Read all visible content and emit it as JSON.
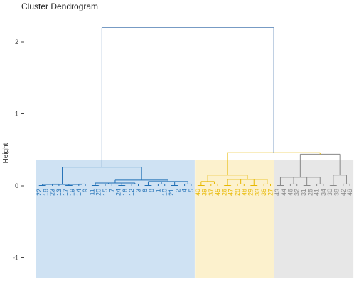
{
  "chart_data": {
    "type": "dendrogram",
    "title": "Cluster Dendrogram",
    "ylabel": "Height",
    "xlabel": "",
    "yticks": [
      2,
      1,
      0,
      -1
    ],
    "ylim": [
      -1.3,
      2.35
    ],
    "grid": false,
    "colors": {
      "cluster1": "#1f6fb5",
      "cluster2": "#e7b800",
      "cluster3": "#888888",
      "top": "#4a7ab0",
      "rect1": "#cfe2f3",
      "rect2": "#fcf1cd",
      "rect3": "#e7e7e7"
    },
    "clusters": [
      {
        "leaves": [
          "22",
          "18",
          "23",
          "13",
          "17",
          "19",
          "14",
          "9",
          "11",
          "20",
          "15",
          "7",
          "24",
          "16",
          "12",
          "3",
          "6",
          "8",
          "1",
          "10",
          "21",
          "2",
          "4",
          "5"
        ]
      },
      {
        "leaves": [
          "40",
          "39",
          "37",
          "45",
          "26",
          "47",
          "28",
          "48",
          "29",
          "33",
          "36",
          "27"
        ]
      },
      {
        "leaves": [
          "43",
          "44",
          "46",
          "32",
          "31",
          "25",
          "41",
          "34",
          "30",
          "38",
          "42",
          "49"
        ]
      }
    ],
    "merges": [
      {
        "name": "root",
        "height": 2.2
      },
      {
        "name": "cluster2-cluster3",
        "height": 0.46
      },
      {
        "name": "cluster1",
        "height": 0.26
      },
      {
        "name": "cluster3",
        "height": 0.44
      },
      {
        "name": "cluster2",
        "height": 0.15
      }
    ]
  }
}
